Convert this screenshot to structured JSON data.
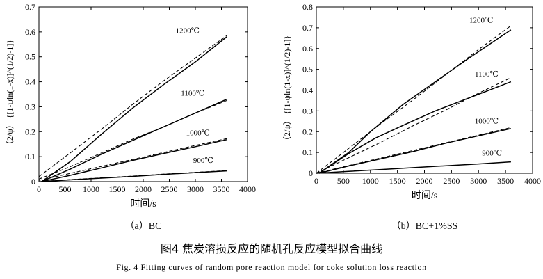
{
  "figure": {
    "caption_cn": "图4  焦炭溶损反应的随机孔反应模型拟合曲线",
    "caption_en": "Fig. 4   Fitting curves of random pore reaction model for coke solution loss reaction"
  },
  "chart_data": [
    {
      "type": "line",
      "subtitle": "（a）BC",
      "xlabel": "时间/s",
      "ylabel": "（2/ψ） {[1-ψln(1-x)]^(1/2)-1]}",
      "xlim": [
        0,
        4000
      ],
      "ylim": [
        0,
        0.7
      ],
      "xticks": [
        0,
        500,
        1000,
        1500,
        2000,
        2500,
        3000,
        3500,
        4000
      ],
      "xtick_labels": [
        "0",
        "500",
        "1000",
        "1500",
        "2000",
        "2500",
        "3000",
        "3500",
        "4000"
      ],
      "yticks": [
        0,
        0.1,
        0.2,
        0.3,
        0.4,
        0.5,
        0.6,
        0.7
      ],
      "ytick_labels": [
        "0",
        "0.1",
        "0.2",
        "0.3",
        "0.4",
        "0.5",
        "0.6",
        "0.7"
      ],
      "grid": false,
      "series": [
        {
          "name": "1200℃",
          "style": "solid",
          "x": [
            50,
            600,
            1200,
            1800,
            2400,
            3000,
            3600
          ],
          "y": [
            0.0,
            0.08,
            0.19,
            0.295,
            0.39,
            0.48,
            0.58
          ]
        },
        {
          "name": "1200℃ fit",
          "style": "dashed",
          "x": [
            0,
            600,
            1200,
            1800,
            2400,
            3000,
            3600
          ],
          "y": [
            0.02,
            0.115,
            0.21,
            0.31,
            0.405,
            0.495,
            0.585
          ]
        },
        {
          "name": "1100℃",
          "style": "solid",
          "x": [
            50,
            600,
            1200,
            1800,
            2400,
            3000,
            3600
          ],
          "y": [
            0.0,
            0.05,
            0.11,
            0.165,
            0.22,
            0.275,
            0.33
          ]
        },
        {
          "name": "1100℃ fit",
          "style": "dashed",
          "x": [
            0,
            600,
            1200,
            1800,
            2400,
            3000,
            3600
          ],
          "y": [
            0.01,
            0.06,
            0.115,
            0.17,
            0.22,
            0.275,
            0.325
          ]
        },
        {
          "name": "1000℃",
          "style": "solid",
          "x": [
            50,
            600,
            1200,
            1800,
            2400,
            3000,
            3600
          ],
          "y": [
            0.0,
            0.025,
            0.055,
            0.085,
            0.113,
            0.14,
            0.168
          ]
        },
        {
          "name": "1000℃ fit",
          "style": "dashed",
          "x": [
            0,
            600,
            1200,
            1800,
            2400,
            3000,
            3600
          ],
          "y": [
            0.005,
            0.033,
            0.061,
            0.089,
            0.117,
            0.145,
            0.172
          ]
        },
        {
          "name": "900℃",
          "style": "solid",
          "x": [
            50,
            600,
            1200,
            1800,
            2400,
            3000,
            3600
          ],
          "y": [
            0.0,
            0.007,
            0.014,
            0.021,
            0.029,
            0.036,
            0.043
          ]
        },
        {
          "name": "900℃ fit",
          "style": "dashed",
          "x": [
            0,
            600,
            1200,
            1800,
            2400,
            3000,
            3600
          ],
          "y": [
            0.0,
            0.008,
            0.015,
            0.022,
            0.03,
            0.037,
            0.044
          ]
        }
      ],
      "annotations": [
        {
          "text": "1200℃",
          "x": 2850,
          "y": 0.595
        },
        {
          "text": "1100℃",
          "x": 2950,
          "y": 0.345
        },
        {
          "text": "1000℃",
          "x": 3050,
          "y": 0.185
        },
        {
          "text": "900℃",
          "x": 3150,
          "y": 0.075
        }
      ]
    },
    {
      "type": "line",
      "subtitle": "（b）BC+1%SS",
      "xlabel": "时间/s",
      "ylabel": "（2/ψ） {[1-ψln(1-x)]^(1/2)-1]}",
      "xlim": [
        0,
        4000
      ],
      "ylim": [
        0,
        0.8
      ],
      "xticks": [
        0,
        500,
        1000,
        1500,
        2000,
        2500,
        3000,
        3500,
        4000
      ],
      "xtick_labels": [
        "0",
        "500",
        "1000",
        "1500",
        "2000",
        "2500",
        "3000",
        "3500",
        "4000"
      ],
      "yticks": [
        0,
        0.1,
        0.2,
        0.3,
        0.4,
        0.5,
        0.6,
        0.7,
        0.8
      ],
      "ytick_labels": [
        "0",
        "0.1",
        "0.2",
        "0.3",
        "0.4",
        "0.5",
        "0.6",
        "0.7",
        "0.8"
      ],
      "grid": false,
      "series": [
        {
          "name": "1200℃",
          "style": "solid",
          "x": [
            50,
            600,
            1000,
            1600,
            2200,
            2800,
            3600
          ],
          "y": [
            0.0,
            0.1,
            0.2,
            0.33,
            0.44,
            0.55,
            0.69
          ]
        },
        {
          "name": "1200℃ fit",
          "style": "dashed",
          "x": [
            0,
            600,
            1200,
            1800,
            2400,
            3000,
            3600
          ],
          "y": [
            0.0,
            0.12,
            0.24,
            0.355,
            0.475,
            0.595,
            0.71
          ]
        },
        {
          "name": "1100℃",
          "style": "solid",
          "x": [
            50,
            600,
            1100,
            1600,
            2200,
            2800,
            3600
          ],
          "y": [
            0.0,
            0.095,
            0.17,
            0.23,
            0.3,
            0.36,
            0.44
          ]
        },
        {
          "name": "1100℃ fit",
          "style": "dashed",
          "x": [
            0,
            600,
            1200,
            1800,
            2400,
            3000,
            3600
          ],
          "y": [
            0.0,
            0.075,
            0.15,
            0.23,
            0.305,
            0.385,
            0.46
          ]
        },
        {
          "name": "1000℃",
          "style": "solid",
          "x": [
            50,
            600,
            1200,
            1800,
            2400,
            3000,
            3600
          ],
          "y": [
            0.0,
            0.035,
            0.07,
            0.105,
            0.145,
            0.18,
            0.215
          ]
        },
        {
          "name": "1000℃ fit",
          "style": "dashed",
          "x": [
            0,
            600,
            1200,
            1800,
            2400,
            3000,
            3600
          ],
          "y": [
            0.0,
            0.037,
            0.074,
            0.11,
            0.147,
            0.183,
            0.22
          ]
        },
        {
          "name": "900℃",
          "style": "solid",
          "x": [
            0,
            600,
            1200,
            1800,
            2400,
            3000,
            3600
          ],
          "y": [
            0.0,
            0.009,
            0.018,
            0.027,
            0.036,
            0.045,
            0.055
          ]
        }
      ],
      "annotations": [
        {
          "text": "1200℃",
          "x": 3050,
          "y": 0.725
        },
        {
          "text": "1100℃",
          "x": 3150,
          "y": 0.465
        },
        {
          "text": "1000℃",
          "x": 3150,
          "y": 0.24
        },
        {
          "text": "900℃",
          "x": 3250,
          "y": 0.085
        }
      ]
    }
  ]
}
